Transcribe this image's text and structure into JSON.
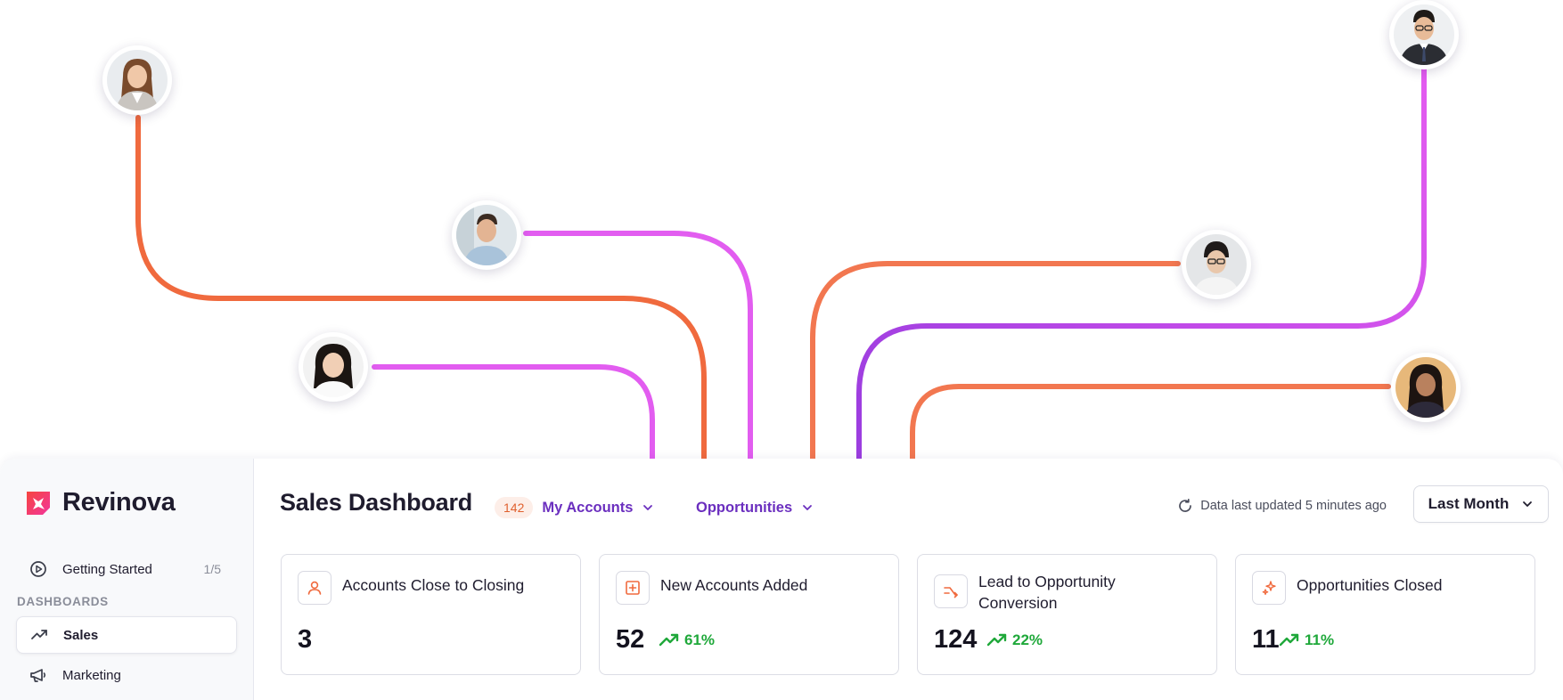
{
  "colors": {
    "orange": "#f16a3b",
    "magenta": "#e05cf2",
    "purple": "#9b3ee0",
    "accent_purple": "#6b2fbf",
    "positive_green": "#1fa83a"
  },
  "decor": {
    "avatars": [
      {
        "name": "avatar-woman-blazer",
        "icon": "person-photo"
      },
      {
        "name": "avatar-man-smiling",
        "icon": "person-photo"
      },
      {
        "name": "avatar-woman-smiling",
        "icon": "person-photo"
      },
      {
        "name": "avatar-man-glasses-suit",
        "icon": "person-photo"
      },
      {
        "name": "avatar-person-glasses",
        "icon": "person-photo"
      },
      {
        "name": "avatar-woman-dark-hair",
        "icon": "person-photo"
      }
    ]
  },
  "sidebar": {
    "brand": "Revinova",
    "getting_started": {
      "label": "Getting Started",
      "progress": "1/5",
      "icon": "play-circle-icon"
    },
    "section_label": "DASHBOARDS",
    "items": [
      {
        "label": "Sales",
        "icon": "trending-up-icon",
        "active": true
      },
      {
        "label": "Marketing",
        "icon": "megaphone-icon",
        "active": false
      }
    ]
  },
  "header": {
    "title": "Sales Dashboard",
    "accounts_filter": {
      "count": "142",
      "label": "My Accounts"
    },
    "opportunities_filter": {
      "label": "Opportunities"
    },
    "updated_text": "Data last updated 5 minutes ago",
    "period": "Last Month"
  },
  "cards": [
    {
      "title": "Accounts Close to Closing",
      "value": "3",
      "delta": "",
      "icon": "user-icon"
    },
    {
      "title": "New Accounts Added",
      "value": "52",
      "delta": "61%",
      "icon": "plus-square-icon"
    },
    {
      "title_line1": "Lead to Opportunity",
      "title_line2": "Conversion",
      "value": "124",
      "delta": "22%",
      "icon": "shuffle-arrows-icon"
    },
    {
      "title": "Opportunities Closed",
      "value": "11",
      "delta": "11%",
      "icon": "sparkle-icon"
    }
  ]
}
